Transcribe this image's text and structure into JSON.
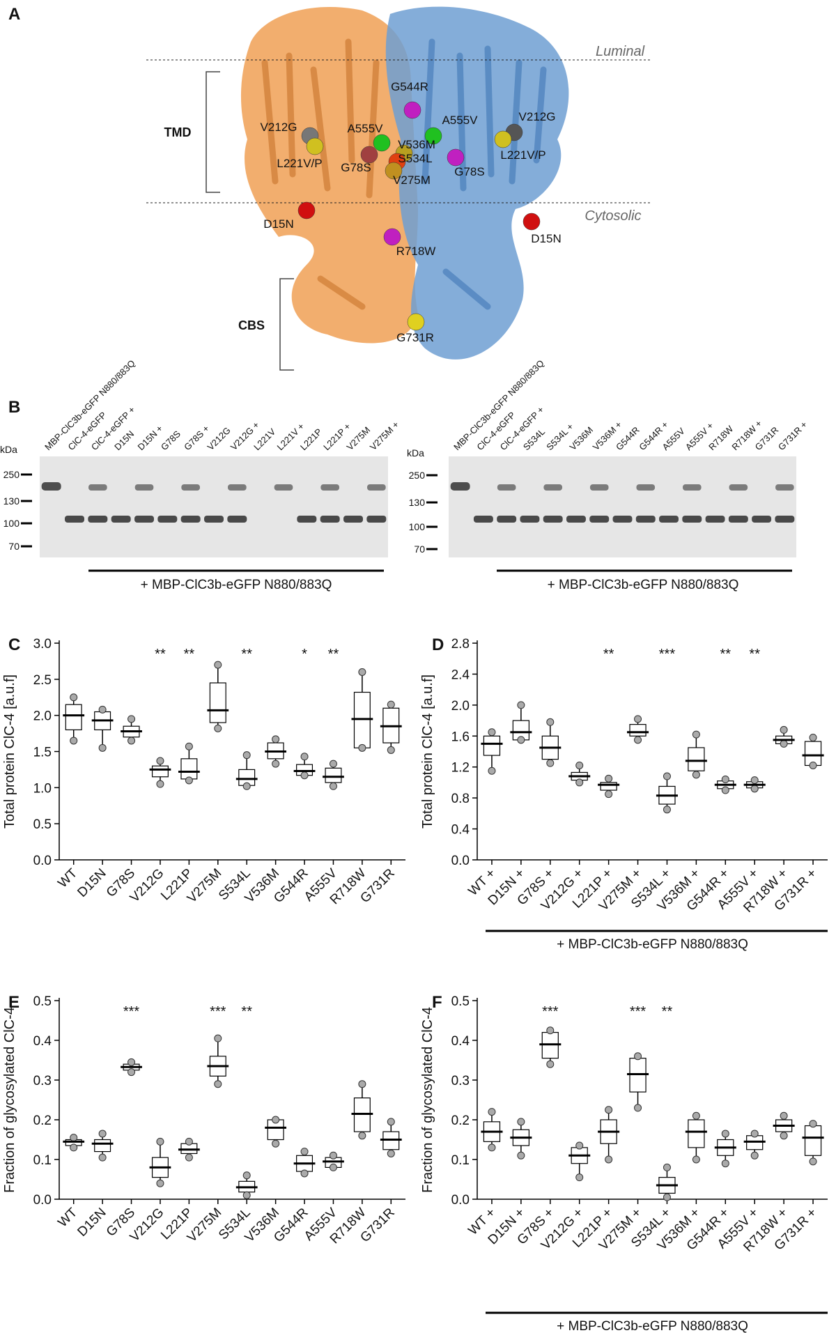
{
  "panel_a": {
    "label": "A",
    "luminal": "Luminal",
    "cytosolic": "Cytosolic",
    "tmd": "TMD",
    "cbs": "CBS",
    "mutations": [
      "G544R",
      "V212G",
      "A555V",
      "A555V",
      "V212G",
      "V536M",
      "S534L",
      "L221V/P",
      "G78S",
      "V275M",
      "G78S",
      "L221V/P",
      "D15N",
      "D15N",
      "R718W",
      "G731R"
    ]
  },
  "panel_b": {
    "label": "B",
    "blots": [
      {
        "kda_label": "kDa",
        "markers": [
          250,
          130,
          100,
          70
        ],
        "footnote": "+ MBP-ClC3b-eGFP N880/883Q",
        "lanes": [
          "MBP-ClC3b-eGFP N880/883Q",
          "ClC-4-eGFP",
          "ClC-4-eGFP +",
          "D15N",
          "D15N +",
          "G78S",
          "G78S +",
          "V212G",
          "V212G +",
          "L221V",
          "L221V +",
          "L221P",
          "L221P +",
          "V275M",
          "V275M +"
        ]
      },
      {
        "kda_label": "kDa",
        "markers": [
          250,
          130,
          100,
          70
        ],
        "footnote": "+ MBP-ClC3b-eGFP N880/883Q",
        "lanes": [
          "MBP-ClC3b-eGFP N880/883Q",
          "ClC-4-eGFP",
          "ClC-4-eGFP +",
          "S534L",
          "S534L +",
          "V536M",
          "V536M +",
          "G544R",
          "G544R +",
          "A555V",
          "A555V +",
          "R718W",
          "R718W +",
          "G731R",
          "G731R +"
        ]
      }
    ]
  },
  "chart_data": [
    {
      "type": "box",
      "panel": "C",
      "y_label": "Total protein ClC-4 [a.u.f]",
      "categories": [
        "WT",
        "D15N",
        "G78S",
        "V212G",
        "L221P",
        "V275M",
        "S534L",
        "V536M",
        "G544R",
        "A555V",
        "R718W",
        "G731R"
      ],
      "values": [
        [
          1.65,
          1.8,
          2.0,
          2.15,
          2.25
        ],
        [
          1.55,
          1.8,
          1.93,
          2.05,
          2.08
        ],
        [
          1.65,
          1.7,
          1.78,
          1.85,
          1.95
        ],
        [
          1.05,
          1.15,
          1.25,
          1.3,
          1.37
        ],
        [
          1.1,
          1.12,
          1.22,
          1.4,
          1.57
        ],
        [
          1.82,
          1.9,
          2.07,
          2.45,
          2.7
        ],
        [
          1.02,
          1.03,
          1.12,
          1.25,
          1.45
        ],
        [
          1.33,
          1.4,
          1.5,
          1.62,
          1.67
        ],
        [
          1.17,
          1.17,
          1.23,
          1.32,
          1.43
        ],
        [
          1.02,
          1.07,
          1.15,
          1.27,
          1.33
        ],
        [
          1.55,
          1.55,
          1.95,
          2.32,
          2.6
        ],
        [
          1.52,
          1.62,
          1.85,
          2.1,
          2.15
        ]
      ],
      "significance": [
        null,
        null,
        null,
        "**",
        "**",
        null,
        "**",
        null,
        "*",
        "**",
        null,
        null
      ],
      "ylim": [
        0,
        3
      ],
      "yticks": [
        {
          "value": 0,
          "label": "0.0"
        },
        {
          "value": 0.5,
          "label": "0.5"
        },
        {
          "value": 1,
          "label": "1.0"
        },
        {
          "value": 1.5,
          "label": "1.5"
        },
        {
          "value": 2,
          "label": "2.0"
        },
        {
          "value": 2.5,
          "label": "2.5"
        },
        {
          "value": 3,
          "label": "3.0"
        }
      ]
    },
    {
      "type": "box",
      "panel": "D",
      "y_label": "Total protein ClC-4 [a.u.f]",
      "footnote": "+ MBP-ClC3b-eGFP N880/883Q",
      "categories": [
        "WT +",
        "D15N +",
        "G78S +",
        "V212G +",
        "L221P +",
        "V275M +",
        "S534L +",
        "V536M +",
        "G544R +",
        "A555V +",
        "R718W +",
        "G731R +"
      ],
      "values": [
        [
          1.15,
          1.35,
          1.5,
          1.6,
          1.65
        ],
        [
          1.55,
          1.55,
          1.65,
          1.8,
          2.0
        ],
        [
          1.25,
          1.3,
          1.45,
          1.6,
          1.78
        ],
        [
          1.0,
          1.03,
          1.08,
          1.13,
          1.22
        ],
        [
          0.85,
          0.9,
          0.97,
          1.0,
          1.05
        ],
        [
          1.55,
          1.6,
          1.65,
          1.75,
          1.82
        ],
        [
          0.65,
          0.72,
          0.83,
          0.95,
          1.08
        ],
        [
          1.1,
          1.15,
          1.28,
          1.45,
          1.62
        ],
        [
          0.9,
          0.92,
          0.97,
          1.02,
          1.04
        ],
        [
          0.92,
          0.93,
          0.97,
          1.01,
          1.03
        ],
        [
          1.5,
          1.5,
          1.55,
          1.6,
          1.68
        ],
        [
          1.22,
          1.22,
          1.35,
          1.53,
          1.58
        ]
      ],
      "significance": [
        null,
        null,
        null,
        null,
        "**",
        null,
        "***",
        null,
        "**",
        "**",
        null,
        null
      ],
      "ylim": [
        0,
        2.8
      ],
      "yticks": [
        {
          "value": 0,
          "label": "0.0"
        },
        {
          "value": 0.4,
          "label": "0.4"
        },
        {
          "value": 0.8,
          "label": "0.8"
        },
        {
          "value": 1.2,
          "label": "1.2"
        },
        {
          "value": 1.6,
          "label": "1.6"
        },
        {
          "value": 2,
          "label": "2.0"
        },
        {
          "value": 2.4,
          "label": "2.4"
        },
        {
          "value": 2.8,
          "label": "2.8"
        }
      ]
    },
    {
      "type": "box",
      "panel": "E",
      "y_label": "Fraction of glycosylated ClC-4",
      "categories": [
        "WT",
        "D15N",
        "G78S",
        "V212G",
        "L221P",
        "V275M",
        "S534L",
        "V536M",
        "G544R",
        "A555V",
        "R718W",
        "G731R"
      ],
      "values": [
        [
          0.13,
          0.135,
          0.145,
          0.15,
          0.155
        ],
        [
          0.105,
          0.12,
          0.14,
          0.15,
          0.165
        ],
        [
          0.32,
          0.325,
          0.333,
          0.34,
          0.345
        ],
        [
          0.04,
          0.055,
          0.08,
          0.105,
          0.145
        ],
        [
          0.105,
          0.115,
          0.125,
          0.14,
          0.145
        ],
        [
          0.29,
          0.31,
          0.335,
          0.36,
          0.405
        ],
        [
          0.01,
          0.018,
          0.03,
          0.045,
          0.06
        ],
        [
          0.14,
          0.15,
          0.18,
          0.2,
          0.2
        ],
        [
          0.065,
          0.07,
          0.09,
          0.11,
          0.12
        ],
        [
          0.08,
          0.08,
          0.095,
          0.105,
          0.11
        ],
        [
          0.16,
          0.17,
          0.215,
          0.255,
          0.29
        ],
        [
          0.115,
          0.125,
          0.15,
          0.17,
          0.195
        ]
      ],
      "significance": [
        null,
        null,
        "***",
        null,
        null,
        "***",
        "**",
        null,
        null,
        null,
        null,
        null
      ],
      "ylim": [
        0,
        0.5
      ],
      "yticks": [
        {
          "value": 0,
          "label": "0.0"
        },
        0.1,
        0.2,
        0.3,
        0.4,
        0.5
      ]
    },
    {
      "type": "box",
      "panel": "F",
      "y_label": "Fraction of glycosylated ClC-4",
      "footnote": "+ MBP-ClC3b-eGFP N880/883Q",
      "categories": [
        "WT +",
        "D15N +",
        "G78S +",
        "V212G +",
        "L221P +",
        "V275M +",
        "S534L +",
        "V536M +",
        "G544R +",
        "A555V +",
        "R718W +",
        "G731R +"
      ],
      "values": [
        [
          0.13,
          0.145,
          0.17,
          0.195,
          0.22
        ],
        [
          0.11,
          0.135,
          0.155,
          0.175,
          0.195
        ],
        [
          0.34,
          0.355,
          0.39,
          0.42,
          0.425
        ],
        [
          0.055,
          0.09,
          0.11,
          0.13,
          0.135
        ],
        [
          0.1,
          0.14,
          0.17,
          0.2,
          0.225
        ],
        [
          0.23,
          0.27,
          0.315,
          0.355,
          0.36
        ],
        [
          0.005,
          0.015,
          0.035,
          0.055,
          0.08
        ],
        [
          0.1,
          0.13,
          0.17,
          0.2,
          0.21
        ],
        [
          0.09,
          0.11,
          0.13,
          0.15,
          0.165
        ],
        [
          0.11,
          0.125,
          0.145,
          0.16,
          0.165
        ],
        [
          0.16,
          0.17,
          0.185,
          0.2,
          0.21
        ],
        [
          0.095,
          0.11,
          0.155,
          0.185,
          0.19
        ]
      ],
      "significance": [
        null,
        null,
        "***",
        null,
        null,
        "***",
        "**",
        null,
        null,
        null,
        null,
        null
      ],
      "ylim": [
        0,
        0.5
      ],
      "yticks": [
        {
          "value": 0,
          "label": "0.0"
        },
        0.1,
        0.2,
        0.3,
        0.4,
        0.5
      ]
    }
  ]
}
